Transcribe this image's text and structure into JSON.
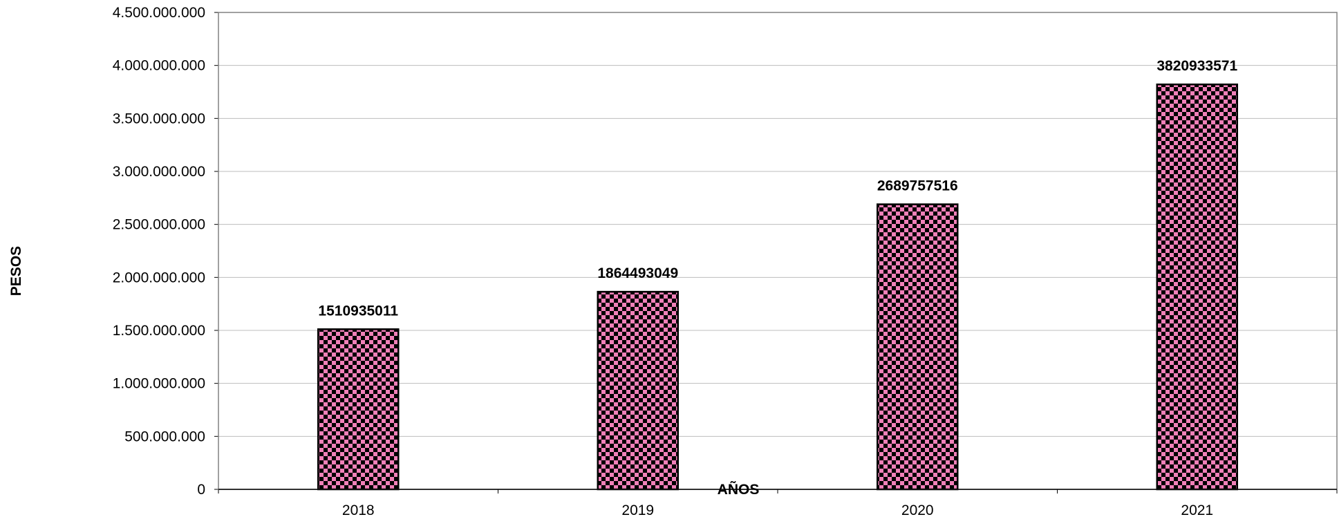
{
  "chart_data": {
    "type": "bar",
    "categories": [
      "2018",
      "2019",
      "2020",
      "2021"
    ],
    "values": [
      1510935011,
      1864493049,
      2689757516,
      3820933571
    ],
    "data_labels": [
      "1510935011",
      "1864493049",
      "2689757516",
      "3820933571"
    ],
    "ylim": [
      0,
      4500000000
    ],
    "yticks": [
      0,
      500000000,
      1000000000,
      1500000000,
      2000000000,
      2500000000,
      3000000000,
      3500000000,
      4000000000,
      4500000000
    ],
    "ytick_labels": [
      "0",
      "500.000.000",
      "1.000.000.000",
      "1.500.000.000",
      "2.000.000.000",
      "2.500.000.000",
      "3.000.000.000",
      "3.500.000.000",
      "4.000.000.000",
      "4.500.000.000"
    ],
    "xlabel": "AÑOS",
    "ylabel": "PESOS",
    "grid": true,
    "colors": {
      "bar_fill": "#f080b8",
      "bar_pattern": "#000000",
      "gridline": "#bdbdbd"
    }
  }
}
